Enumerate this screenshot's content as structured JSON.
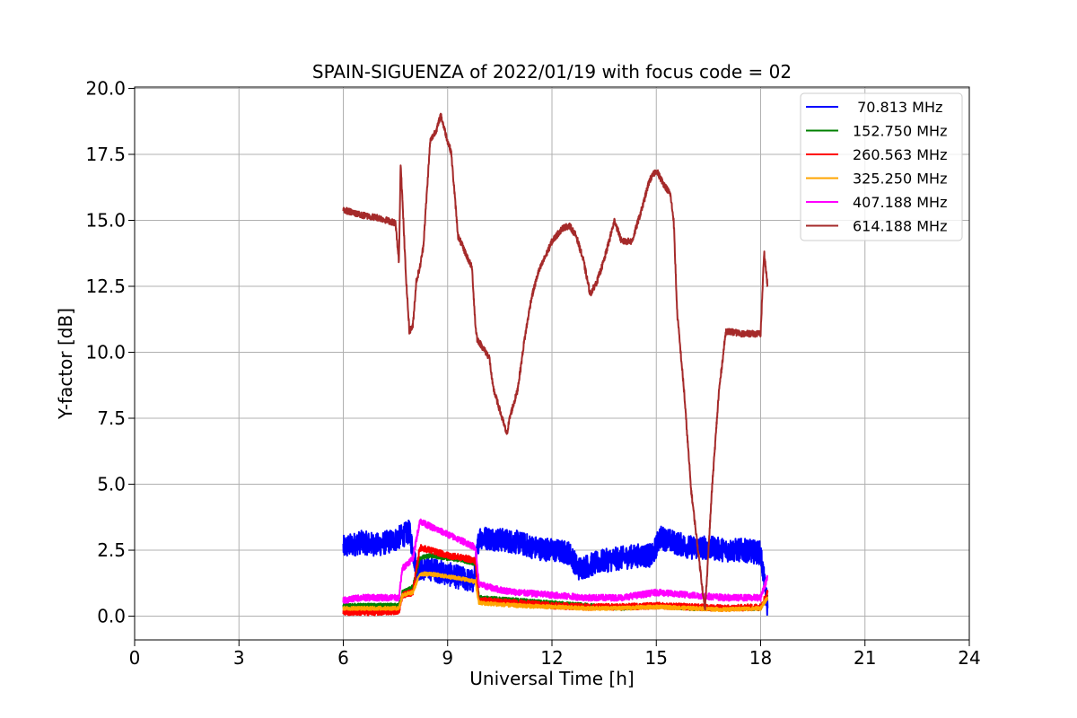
{
  "chart_data": {
    "type": "line",
    "title": "SPAIN-SIGUENZA of 2022/01/19 with focus code = 02",
    "xlabel": "Universal Time [h]",
    "ylabel": "Y-factor [dB]",
    "xlim": [
      0,
      24
    ],
    "ylim": [
      -0.9,
      20.05
    ],
    "xticks": [
      0,
      3,
      6,
      9,
      12,
      15,
      18,
      21,
      24
    ],
    "xtick_labels": [
      "0",
      "3",
      "6",
      "9",
      "12",
      "15",
      "18",
      "21",
      "24"
    ],
    "yticks": [
      0,
      2.5,
      5,
      7.5,
      10,
      12.5,
      15,
      17.5,
      20
    ],
    "ytick_labels": [
      "0.0",
      "2.5",
      "5.0",
      "7.5",
      "10.0",
      "12.5",
      "15.0",
      "17.5",
      "20.0"
    ],
    "grid": true,
    "legend_position": "top-right",
    "series": [
      {
        "name": " 70.813 MHz",
        "color": "#0000ff",
        "noise": 0.45,
        "x": [
          6.0,
          6.5,
          7.0,
          7.5,
          7.9,
          8.1,
          8.5,
          9.0,
          9.5,
          9.75,
          9.9,
          10.5,
          11.0,
          11.5,
          12.0,
          12.5,
          12.75,
          13.0,
          13.5,
          14.0,
          14.5,
          14.9,
          15.1,
          15.5,
          16.0,
          16.5,
          17.0,
          17.5,
          18.0,
          18.2
        ],
        "y": [
          2.6,
          2.8,
          2.7,
          2.9,
          3.2,
          1.8,
          1.8,
          1.6,
          1.4,
          1.3,
          3.0,
          2.9,
          2.8,
          2.6,
          2.5,
          2.4,
          1.8,
          1.9,
          2.1,
          2.2,
          2.3,
          2.3,
          3.0,
          2.8,
          2.6,
          2.6,
          2.5,
          2.5,
          2.4,
          0.3
        ]
      },
      {
        "name": "152.750 MHz",
        "color": "#008000",
        "noise": 0.08,
        "x": [
          6.0,
          7.0,
          7.6,
          7.7,
          8.0,
          8.2,
          8.5,
          9.0,
          9.5,
          9.8,
          9.9,
          11.0,
          12.0,
          13.0,
          14.0,
          15.0,
          16.0,
          17.0,
          18.0,
          18.2
        ],
        "y": [
          0.4,
          0.4,
          0.4,
          0.9,
          1.1,
          2.2,
          2.3,
          2.2,
          2.1,
          2.0,
          0.7,
          0.6,
          0.5,
          0.4,
          0.3,
          0.4,
          0.3,
          0.3,
          0.3,
          0.8
        ]
      },
      {
        "name": "260.563 MHz",
        "color": "#ff0000",
        "noise": 0.12,
        "x": [
          6.0,
          7.0,
          7.6,
          7.7,
          8.0,
          8.2,
          8.5,
          9.0,
          9.5,
          9.8,
          9.9,
          11.0,
          12.0,
          13.0,
          14.0,
          15.0,
          16.0,
          17.0,
          18.0,
          18.2
        ],
        "y": [
          0.15,
          0.15,
          0.2,
          0.8,
          0.9,
          2.6,
          2.5,
          2.3,
          2.2,
          2.1,
          0.6,
          0.5,
          0.4,
          0.35,
          0.35,
          0.4,
          0.35,
          0.3,
          0.35,
          0.9
        ]
      },
      {
        "name": "325.250 MHz",
        "color": "#ffa500",
        "noise": 0.07,
        "x": [
          6.0,
          7.0,
          7.6,
          7.7,
          8.0,
          8.2,
          8.5,
          9.0,
          9.5,
          9.8,
          9.9,
          11.0,
          12.0,
          13.0,
          14.0,
          15.0,
          16.0,
          17.0,
          18.0,
          18.2
        ],
        "y": [
          0.3,
          0.3,
          0.3,
          0.8,
          0.9,
          1.6,
          1.6,
          1.5,
          1.4,
          1.3,
          0.5,
          0.4,
          0.35,
          0.3,
          0.3,
          0.35,
          0.3,
          0.25,
          0.3,
          0.7
        ]
      },
      {
        "name": "407.188 MHz",
        "color": "#ff00ff",
        "noise": 0.12,
        "x": [
          6.0,
          6.5,
          7.0,
          7.6,
          7.7,
          8.0,
          8.2,
          8.5,
          9.0,
          9.5,
          9.8,
          9.9,
          10.5,
          11.0,
          12.0,
          13.0,
          14.0,
          15.0,
          16.0,
          17.0,
          18.0,
          18.2
        ],
        "y": [
          0.6,
          0.7,
          0.7,
          0.7,
          1.8,
          2.2,
          3.6,
          3.4,
          3.1,
          2.8,
          2.6,
          1.2,
          1.0,
          0.9,
          0.8,
          0.7,
          0.7,
          0.9,
          0.8,
          0.7,
          0.7,
          1.5
        ]
      },
      {
        "name": "614.188 MHz",
        "color": "#a52a2a",
        "noise": 0.12,
        "x": [
          6.0,
          6.5,
          7.0,
          7.5,
          7.6,
          7.65,
          7.8,
          7.9,
          8.0,
          8.1,
          8.2,
          8.3,
          8.5,
          8.7,
          8.8,
          9.0,
          9.1,
          9.3,
          9.5,
          9.7,
          9.8,
          9.85,
          10.0,
          10.2,
          10.3,
          10.5,
          10.7,
          10.8,
          11.0,
          11.1,
          11.2,
          11.4,
          11.6,
          12.0,
          12.3,
          12.5,
          12.7,
          12.9,
          13.1,
          13.3,
          13.5,
          13.8,
          14.0,
          14.3,
          14.6,
          14.8,
          15.0,
          15.2,
          15.4,
          15.5,
          15.6,
          15.8,
          16.0,
          16.2,
          16.4,
          16.6,
          16.8,
          17.0,
          17.5,
          18.0,
          18.1,
          18.2
        ],
        "y": [
          15.4,
          15.2,
          15.1,
          14.9,
          13.4,
          17.2,
          12.9,
          10.8,
          11.0,
          12.7,
          13.2,
          14.0,
          18.0,
          18.5,
          19.0,
          18.0,
          17.6,
          14.4,
          13.8,
          13.2,
          11.0,
          10.5,
          10.2,
          9.8,
          8.7,
          7.8,
          6.9,
          7.6,
          8.5,
          9.4,
          10.4,
          12.0,
          13.0,
          14.2,
          14.7,
          14.8,
          14.4,
          13.5,
          12.2,
          12.7,
          13.5,
          15.0,
          14.2,
          14.2,
          15.5,
          16.5,
          16.9,
          16.4,
          16.0,
          15.0,
          11.5,
          8.5,
          4.8,
          2.5,
          0.2,
          4.8,
          8.5,
          10.8,
          10.7,
          10.7,
          13.8,
          12.5
        ]
      }
    ]
  }
}
